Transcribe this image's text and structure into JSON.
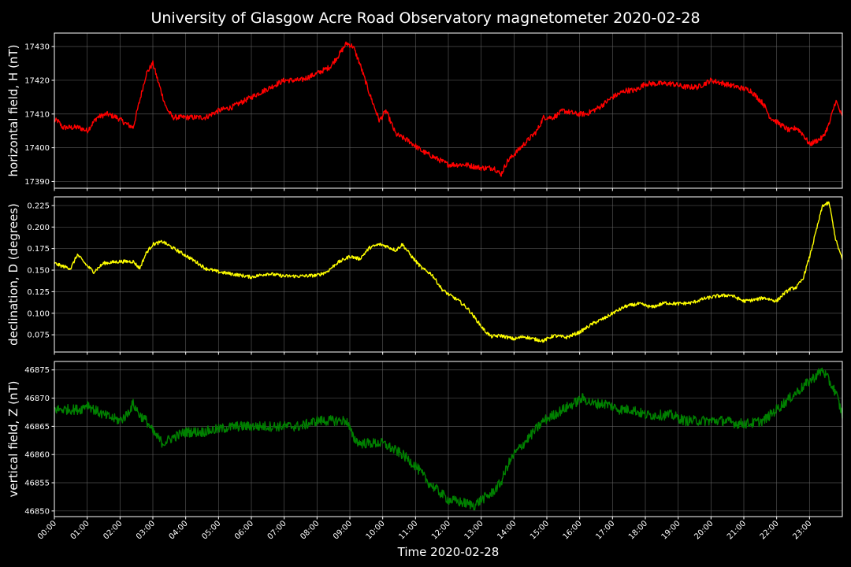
{
  "chart_data": {
    "type": "line",
    "title": "University of Glasgow Acre Road Observatory magnetometer 2020-02-28",
    "xlabel": "Time 2020-02-28",
    "x_unit": "hours",
    "xlim": [
      0,
      24
    ],
    "xticks": [
      "00:00",
      "01:00",
      "02:00",
      "03:00",
      "04:00",
      "05:00",
      "06:00",
      "07:00",
      "08:00",
      "09:00",
      "10:00",
      "11:00",
      "12:00",
      "13:00",
      "14:00",
      "15:00",
      "16:00",
      "17:00",
      "18:00",
      "19:00",
      "20:00",
      "21:00",
      "22:00",
      "23:00"
    ],
    "grid": true,
    "panels": [
      {
        "id": "H",
        "ylabel": "horizontal field, H (nT)",
        "color": "#ff0000",
        "ylim": [
          17388,
          17434
        ],
        "yticks": [
          17390,
          17400,
          17410,
          17420,
          17430
        ],
        "ytick_labels": [
          "17390",
          "17400",
          "17410",
          "17420",
          "17430"
        ],
        "noise": 0.8,
        "x": [
          0,
          0.1,
          0.25,
          0.5,
          0.75,
          1.0,
          1.3,
          1.6,
          1.9,
          2.2,
          2.4,
          2.6,
          2.8,
          3.0,
          3.15,
          3.4,
          3.6,
          4.0,
          4.4,
          4.6,
          5.0,
          5.4,
          6.0,
          6.6,
          7.0,
          7.5,
          8.0,
          8.4,
          8.7,
          8.9,
          9.1,
          9.3,
          9.6,
          9.9,
          10.1,
          10.4,
          10.8,
          11.2,
          11.6,
          12.0,
          12.5,
          13.0,
          13.4,
          13.6,
          13.8,
          14.0,
          14.4,
          14.7,
          14.9,
          15.2,
          15.5,
          15.9,
          16.2,
          16.6,
          17.0,
          17.4,
          17.7,
          18.0,
          18.4,
          18.8,
          19.2,
          19.6,
          20.0,
          20.4,
          20.8,
          21.2,
          21.6,
          21.8,
          22.1,
          22.4,
          22.6,
          22.8,
          23.0,
          23.2,
          23.4,
          23.6,
          23.8,
          24.0
        ],
        "y": [
          17408,
          17408,
          17406,
          17406,
          17406,
          17405,
          17409,
          17410,
          17409,
          17407,
          17406,
          17414,
          17422,
          17425,
          17420,
          17412,
          17409,
          17409,
          17409,
          17409,
          17411,
          17412,
          17415,
          17418,
          17420,
          17420,
          17422,
          17424,
          17428,
          17431,
          17430,
          17425,
          17416,
          17408,
          17411,
          17404,
          17402,
          17399,
          17397,
          17395,
          17395,
          17394,
          17394,
          17392,
          17396,
          17398,
          17402,
          17405,
          17409,
          17409,
          17411,
          17410,
          17410,
          17412,
          17415,
          17417,
          17417,
          17419,
          17419,
          17419,
          17418,
          17418,
          17420,
          17419,
          17418,
          17417,
          17413,
          17409,
          17407,
          17405,
          17406,
          17404,
          17401,
          17402,
          17403,
          17407,
          17414,
          17409
        ]
      },
      {
        "id": "D",
        "ylabel": "declination, D (degrees)",
        "color": "#ffff00",
        "ylim": [
          0.055,
          0.235
        ],
        "yticks": [
          0.075,
          0.1,
          0.125,
          0.15,
          0.175,
          0.2,
          0.225
        ],
        "ytick_labels": [
          "0.075",
          "0.100",
          "0.125",
          "0.150",
          "0.175",
          "0.200",
          "0.225"
        ],
        "noise": 0.002,
        "x": [
          0,
          0.2,
          0.5,
          0.7,
          1.0,
          1.2,
          1.5,
          2.0,
          2.4,
          2.6,
          2.8,
          3.0,
          3.3,
          3.6,
          4.0,
          4.3,
          4.6,
          5.0,
          5.5,
          6.0,
          6.5,
          7.0,
          7.5,
          8.0,
          8.3,
          8.6,
          9.0,
          9.3,
          9.6,
          9.9,
          10.1,
          10.4,
          10.6,
          10.9,
          11.2,
          11.5,
          11.8,
          12.0,
          12.3,
          12.6,
          12.9,
          13.1,
          13.3,
          13.6,
          14.0,
          14.3,
          14.6,
          14.9,
          15.2,
          15.6,
          16.0,
          16.4,
          16.8,
          17.0,
          17.4,
          17.8,
          18.2,
          18.6,
          19.0,
          19.4,
          19.8,
          20.2,
          20.6,
          21.0,
          21.4,
          21.6,
          21.8,
          22.0,
          22.2,
          22.4,
          22.6,
          22.8,
          23.0,
          23.2,
          23.4,
          23.6,
          23.8,
          24.0
        ],
        "y": [
          0.158,
          0.155,
          0.152,
          0.168,
          0.155,
          0.148,
          0.158,
          0.16,
          0.16,
          0.152,
          0.17,
          0.18,
          0.183,
          0.176,
          0.167,
          0.16,
          0.152,
          0.148,
          0.145,
          0.142,
          0.146,
          0.143,
          0.143,
          0.144,
          0.148,
          0.158,
          0.166,
          0.163,
          0.176,
          0.18,
          0.178,
          0.173,
          0.18,
          0.165,
          0.152,
          0.145,
          0.128,
          0.122,
          0.115,
          0.105,
          0.09,
          0.08,
          0.073,
          0.074,
          0.07,
          0.073,
          0.07,
          0.068,
          0.074,
          0.072,
          0.078,
          0.088,
          0.095,
          0.1,
          0.108,
          0.111,
          0.107,
          0.112,
          0.111,
          0.112,
          0.117,
          0.12,
          0.121,
          0.114,
          0.116,
          0.118,
          0.116,
          0.114,
          0.122,
          0.128,
          0.13,
          0.14,
          0.165,
          0.195,
          0.225,
          0.228,
          0.185,
          0.162
        ]
      },
      {
        "id": "Z",
        "ylabel": "vertical field, Z (nT)",
        "color": "#008000",
        "ylim": [
          46849,
          46876.5
        ],
        "yticks": [
          46850,
          46855,
          46860,
          46865,
          46870,
          46875
        ],
        "ytick_labels": [
          "46850",
          "46855",
          "46860",
          "46865",
          "46870",
          "46875"
        ],
        "noise": 0.9,
        "x": [
          0,
          0.2,
          0.5,
          0.8,
          1.0,
          1.2,
          1.5,
          2.0,
          2.2,
          2.4,
          2.6,
          2.8,
          3.0,
          3.3,
          3.6,
          4.0,
          4.5,
          5.0,
          5.5,
          6.0,
          6.5,
          7.0,
          7.5,
          8.0,
          8.5,
          8.9,
          9.1,
          9.3,
          9.6,
          10.0,
          10.3,
          10.6,
          11.0,
          11.4,
          11.8,
          12.0,
          12.4,
          12.8,
          13.0,
          13.3,
          13.6,
          13.8,
          14.0,
          14.3,
          14.6,
          14.9,
          15.2,
          15.5,
          15.8,
          16.1,
          16.4,
          16.8,
          17.2,
          17.6,
          18.0,
          18.4,
          18.8,
          19.2,
          19.6,
          20.0,
          20.4,
          20.8,
          21.2,
          21.6,
          22.0,
          22.4,
          22.8,
          23.0,
          23.2,
          23.4,
          23.6,
          23.8,
          24.0
        ],
        "y": [
          46868,
          46868,
          46868,
          46868,
          46869,
          46868,
          46867,
          46866,
          46867,
          46869,
          46867,
          46866,
          46864,
          46862,
          46863,
          46864,
          46864,
          46864.5,
          46865,
          46865,
          46865,
          46865,
          46865,
          46866,
          46866,
          46866,
          46863,
          46862,
          46862,
          46862,
          46861,
          46860,
          46858,
          46855,
          46853,
          46852,
          46851.5,
          46851,
          46852,
          46853,
          46855,
          46858,
          46860,
          46862,
          46864,
          46866,
          46867,
          46868,
          46869,
          46870,
          46869,
          46869,
          46868,
          46868,
          46867,
          46867,
          46867,
          46866,
          46866,
          46866,
          46866,
          46865.5,
          46865.5,
          46866,
          46868,
          46870,
          46872,
          46873,
          46874,
          46875,
          46873,
          46871,
          46867
        ]
      }
    ]
  }
}
